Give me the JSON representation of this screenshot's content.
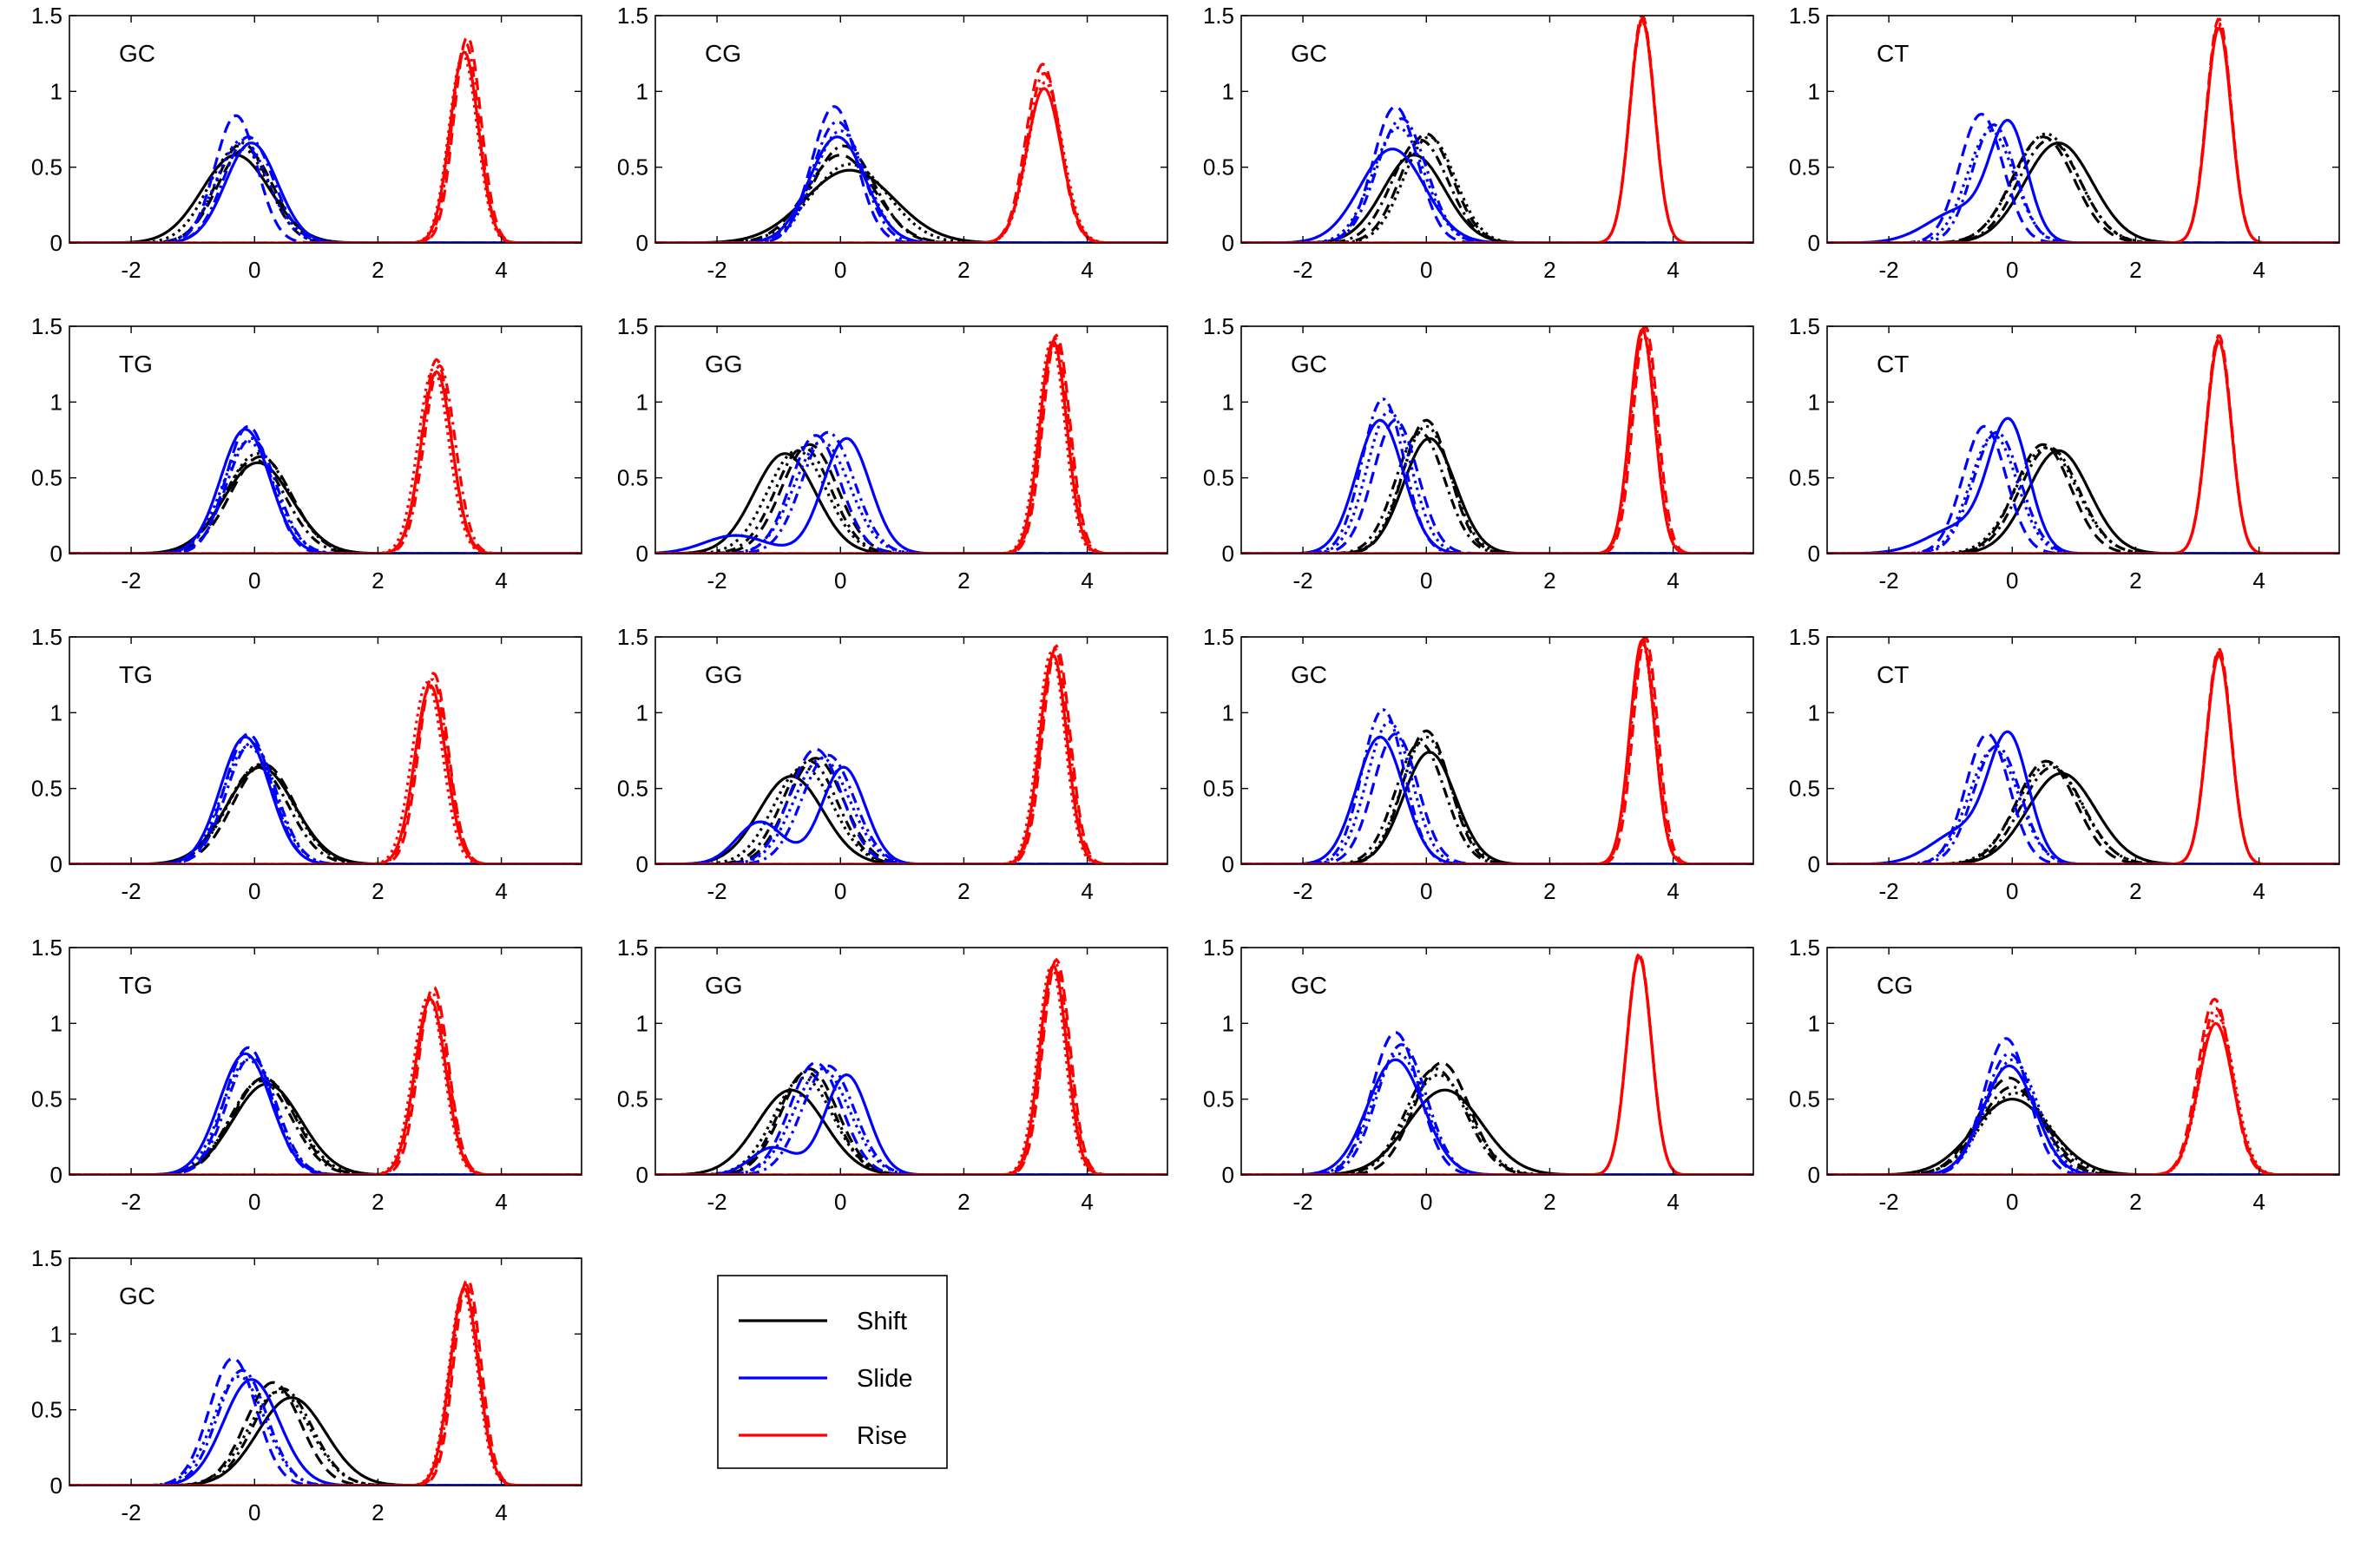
{
  "colors": {
    "shift": "#000000",
    "slide": "#0000ff",
    "rise": "#ff0000"
  },
  "legend": {
    "entries": [
      {
        "label": "Shift",
        "color": "#000000"
      },
      {
        "label": "Slide",
        "color": "#0000ff"
      },
      {
        "label": "Rise",
        "color": "#ff0000"
      }
    ]
  },
  "chart_data": [
    {
      "type": "line",
      "label": "GC",
      "xlim": [
        -3,
        5.3
      ],
      "ylim": [
        0,
        1.5
      ],
      "xticks": [
        -2,
        0,
        2,
        4
      ],
      "yticks": [
        0,
        0.5,
        1,
        1.5
      ],
      "series": [
        {
          "group": "Shift",
          "comps": [
            [
              [
                -0.3,
                0.5,
                0.6
              ]
            ],
            [
              [
                -0.1,
                0.4,
                0.62
              ]
            ],
            [
              [
                -0.2,
                0.42,
                0.66
              ]
            ],
            [
              [
                -0.15,
                0.45,
                0.64
              ]
            ]
          ]
        },
        {
          "group": "Slide",
          "comps": [
            [
              [
                -0.05,
                0.45,
                0.66
              ]
            ],
            [
              [
                -0.3,
                0.34,
                0.84
              ]
            ],
            [
              [
                -0.1,
                0.4,
                0.7
              ]
            ],
            [
              [
                -0.15,
                0.42,
                0.68
              ]
            ]
          ]
        },
        {
          "group": "Rise",
          "comps": [
            [
              [
                3.4,
                0.23,
                1.27
              ]
            ],
            [
              [
                3.45,
                0.22,
                1.36
              ]
            ],
            [
              [
                3.42,
                0.22,
                1.32
              ]
            ],
            [
              [
                3.38,
                0.23,
                1.24
              ]
            ]
          ]
        }
      ]
    },
    {
      "type": "line",
      "label": "CG",
      "xlim": [
        -3,
        5.3
      ],
      "ylim": [
        0,
        1.5
      ],
      "xticks": [
        -2,
        0,
        2,
        4
      ],
      "yticks": [
        0,
        0.5,
        1,
        1.5
      ],
      "series": [
        {
          "group": "Shift",
          "comps": [
            [
              [
                0.1,
                0.65,
                0.48
              ]
            ],
            [
              [
                0.0,
                0.55,
                0.58
              ]
            ],
            [
              [
                0.05,
                0.5,
                0.62
              ]
            ],
            [
              [
                0.1,
                0.58,
                0.52
              ]
            ]
          ]
        },
        {
          "group": "Slide",
          "comps": [
            [
              [
                -0.05,
                0.45,
                0.7
              ]
            ],
            [
              [
                -0.1,
                0.36,
                0.9
              ]
            ],
            [
              [
                -0.05,
                0.4,
                0.8
              ]
            ],
            [
              [
                0.0,
                0.42,
                0.74
              ]
            ]
          ]
        },
        {
          "group": "Rise",
          "comps": [
            [
              [
                3.3,
                0.28,
                1.02
              ]
            ],
            [
              [
                3.28,
                0.27,
                1.18
              ]
            ],
            [
              [
                3.3,
                0.27,
                1.12
              ]
            ],
            [
              [
                3.32,
                0.28,
                1.06
              ]
            ]
          ]
        }
      ]
    },
    {
      "type": "line",
      "label": "GC",
      "xlim": [
        -3,
        5.3
      ],
      "ylim": [
        0,
        1.5
      ],
      "xticks": [
        -2,
        0,
        2,
        4
      ],
      "yticks": [
        0,
        0.5,
        1,
        1.5
      ],
      "series": [
        {
          "group": "Shift",
          "comps": [
            [
              [
                -0.2,
                0.5,
                0.58
              ]
            ],
            [
              [
                0.0,
                0.45,
                0.72
              ]
            ],
            [
              [
                -0.1,
                0.45,
                0.68
              ]
            ],
            [
              [
                0.05,
                0.42,
                0.7
              ]
            ]
          ]
        },
        {
          "group": "Slide",
          "comps": [
            [
              [
                -0.5,
                0.5,
                0.62
              ]
            ],
            [
              [
                -0.5,
                0.36,
                0.9
              ]
            ],
            [
              [
                -0.4,
                0.4,
                0.82
              ]
            ],
            [
              [
                -0.45,
                0.42,
                0.76
              ]
            ]
          ]
        },
        {
          "group": "Rise",
          "comps": [
            [
              [
                3.5,
                0.2,
                1.47
              ]
            ],
            [
              [
                3.5,
                0.2,
                1.5
              ]
            ],
            [
              [
                3.5,
                0.2,
                1.48
              ]
            ],
            [
              [
                3.5,
                0.2,
                1.46
              ]
            ]
          ]
        }
      ]
    },
    {
      "type": "line",
      "label": "CT",
      "xlim": [
        -3,
        5.3
      ],
      "ylim": [
        0,
        1.5
      ],
      "xticks": [
        -2,
        0,
        2,
        4
      ],
      "yticks": [
        0,
        0.5,
        1,
        1.5
      ],
      "series": [
        {
          "group": "Shift",
          "comps": [
            [
              [
                0.7,
                0.55,
                0.66
              ]
            ],
            [
              [
                0.5,
                0.5,
                0.7
              ]
            ],
            [
              [
                0.6,
                0.5,
                0.68
              ]
            ],
            [
              [
                0.55,
                0.52,
                0.7
              ]
            ]
          ]
        },
        {
          "group": "Slide",
          "comps": [
            [
              [
                -0.1,
                0.3,
                0.7
              ],
              [
                -0.9,
                0.5,
                0.2
              ]
            ]
          ],
          "comps2": null
        },
        {
          "group": "Rise",
          "comps": [
            [
              [
                3.35,
                0.2,
                1.42
              ]
            ],
            [
              [
                3.35,
                0.2,
                1.48
              ]
            ],
            [
              [
                3.35,
                0.2,
                1.45
              ]
            ],
            [
              [
                3.35,
                0.2,
                1.44
              ]
            ]
          ]
        }
      ]
    }
  ]
}
